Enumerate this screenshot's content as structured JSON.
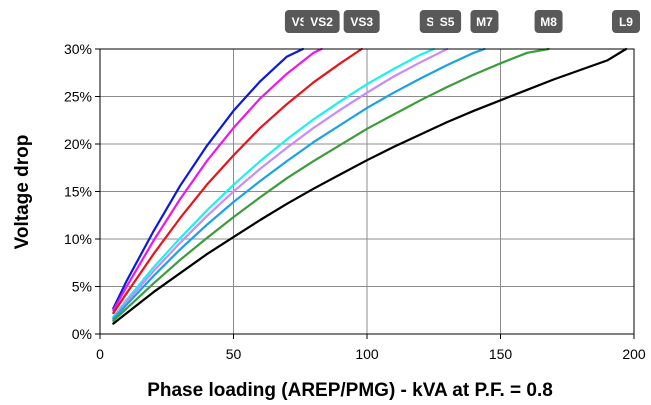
{
  "chart_data": {
    "type": "line",
    "title": "",
    "xlabel": "Phase loading (AREP/PMG) - kVA at P.F. = 0.8",
    "ylabel": "Voltage drop",
    "xlim": [
      0,
      200
    ],
    "ylim": [
      0,
      30
    ],
    "x_ticks": [
      "0",
      "50",
      "100",
      "150",
      "200"
    ],
    "y_ticks": [
      "0%",
      "5%",
      "10%",
      "15%",
      "20%",
      "25%",
      "30%"
    ],
    "grid": true,
    "legend": "top",
    "series": [
      {
        "name": "VS1",
        "color": "#0a1ad8",
        "x": [
          5,
          10,
          20,
          30,
          40,
          50,
          60,
          70,
          76
        ],
        "values": [
          2.7,
          5.6,
          10.8,
          15.6,
          19.8,
          23.5,
          26.6,
          29.2,
          30
        ]
      },
      {
        "name": "VS2",
        "color": "#ec18e8",
        "x": [
          5,
          10,
          20,
          30,
          40,
          50,
          60,
          70,
          80,
          83
        ],
        "values": [
          2.5,
          5.0,
          9.8,
          14.2,
          18.2,
          21.7,
          24.8,
          27.4,
          29.6,
          30
        ]
      },
      {
        "name": "VS3",
        "color": "#e8141a",
        "x": [
          5,
          10,
          20,
          30,
          40,
          50,
          60,
          70,
          80,
          90,
          98
        ],
        "values": [
          2.2,
          4.3,
          8.4,
          12.2,
          15.7,
          18.8,
          21.7,
          24.2,
          26.5,
          28.5,
          30
        ]
      },
      {
        "name": "S4",
        "color": "#1ef0f0",
        "x": [
          5,
          10,
          20,
          30,
          40,
          50,
          60,
          70,
          80,
          90,
          100,
          110,
          120,
          125
        ],
        "values": [
          1.8,
          3.6,
          7.0,
          10.1,
          13.0,
          15.7,
          18.2,
          20.5,
          22.6,
          24.5,
          26.3,
          27.9,
          29.4,
          30
        ]
      },
      {
        "name": "S5",
        "color": "#c88cf8",
        "x": [
          5,
          10,
          20,
          30,
          40,
          50,
          60,
          70,
          80,
          90,
          100,
          110,
          120,
          130
        ],
        "values": [
          1.7,
          3.4,
          6.6,
          9.6,
          12.4,
          15.0,
          17.4,
          19.6,
          21.7,
          23.6,
          25.4,
          27.1,
          28.6,
          30
        ]
      },
      {
        "name": "M7",
        "color": "#1aa2e6",
        "x": [
          5,
          10,
          20,
          30,
          40,
          50,
          60,
          70,
          80,
          90,
          100,
          110,
          120,
          130,
          140,
          144
        ],
        "values": [
          1.6,
          3.1,
          6.1,
          8.9,
          11.5,
          13.9,
          16.1,
          18.2,
          20.2,
          22.0,
          23.8,
          25.4,
          26.9,
          28.3,
          29.6,
          30
        ]
      },
      {
        "name": "M8",
        "color": "#3c9c3c",
        "x": [
          5,
          10,
          20,
          30,
          40,
          50,
          60,
          70,
          80,
          90,
          100,
          110,
          120,
          130,
          140,
          150,
          160,
          168
        ],
        "values": [
          1.4,
          2.7,
          5.3,
          7.8,
          10.1,
          12.3,
          14.4,
          16.4,
          18.2,
          19.9,
          21.6,
          23.1,
          24.6,
          26.0,
          27.3,
          28.5,
          29.6,
          30
        ]
      },
      {
        "name": "L9",
        "color": "#000000",
        "x": [
          5,
          10,
          20,
          30,
          40,
          50,
          60,
          70,
          80,
          90,
          100,
          110,
          120,
          130,
          140,
          150,
          160,
          170,
          180,
          190,
          197
        ],
        "values": [
          1.1,
          2.2,
          4.4,
          6.4,
          8.4,
          10.2,
          12.0,
          13.7,
          15.3,
          16.8,
          18.3,
          19.7,
          21.0,
          22.3,
          23.5,
          24.6,
          25.7,
          26.8,
          27.8,
          28.8,
          30
        ]
      }
    ]
  }
}
